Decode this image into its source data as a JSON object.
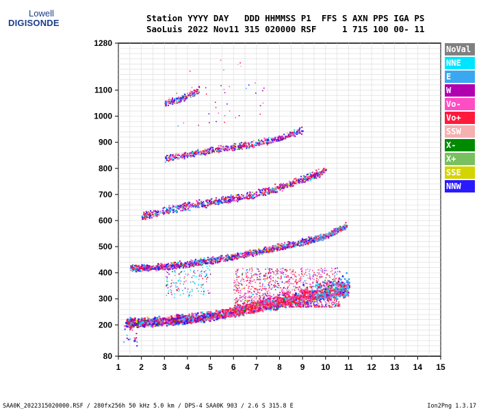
{
  "logo": {
    "line1": "Lowell",
    "line2": "DIGISONDE"
  },
  "header": {
    "line1": "Station YYYY DAY   DDD HHMMSS P1  FFS S AXN PPS IGA PS",
    "line2": "SaoLuis 2022 Nov11 315 020000 RSF     1 715 100 00- 11"
  },
  "legend": [
    {
      "label": "NoVal",
      "color": "#808080"
    },
    {
      "label": "NNE",
      "color": "#00e5ff"
    },
    {
      "label": "E",
      "color": "#3aa8f0"
    },
    {
      "label": "W",
      "color": "#b000b0"
    },
    {
      "label": "Vo-",
      "color": "#ff4dc4"
    },
    {
      "label": "Vo+",
      "color": "#ff1a3c"
    },
    {
      "label": "SSW",
      "color": "#f5b0b0"
    },
    {
      "label": "X-",
      "color": "#008a00"
    },
    {
      "label": "X+",
      "color": "#78c060"
    },
    {
      "label": "SSE",
      "color": "#d4d400"
    },
    {
      "label": "NNW",
      "color": "#2a1aff"
    }
  ],
  "footer": {
    "left": "SAA0K_2022315020000.RSF / 280fx256h 50 kHz 5.0 km / DPS-4 SAA0K 903 / 2.6 S 315.8 E",
    "right": "Ion2Png 1.3.17"
  },
  "chart_data": {
    "type": "scatter",
    "x_ticks": [
      1,
      2,
      3,
      4,
      5,
      6,
      7,
      8,
      9,
      10,
      11,
      12,
      13,
      14,
      15
    ],
    "xlim": [
      1,
      15
    ],
    "y_ticks": [
      80,
      200,
      300,
      400,
      500,
      600,
      700,
      800,
      900,
      1000,
      1100,
      1280
    ],
    "ylim": [
      80,
      1280
    ],
    "traces": [
      {
        "x": [
          1.3,
          2,
          3,
          4,
          5,
          6,
          7,
          8,
          9,
          10,
          11
        ],
        "y": [
          205,
          207,
          212,
          220,
          232,
          245,
          260,
          275,
          290,
          305,
          320
        ]
      },
      {
        "x": [
          1.5,
          2,
          3,
          4,
          5,
          6,
          7,
          8,
          9,
          10,
          10.9
        ],
        "y": [
          415,
          417,
          422,
          432,
          445,
          460,
          478,
          497,
          515,
          540,
          580
        ]
      },
      {
        "x": [
          2,
          3,
          4,
          5,
          6,
          7,
          8,
          9,
          10
        ],
        "y": [
          615,
          635,
          652,
          667,
          683,
          700,
          725,
          755,
          790
        ]
      },
      {
        "x": [
          3,
          4,
          5,
          6,
          7,
          8,
          9
        ],
        "y": [
          835,
          852,
          868,
          880,
          893,
          915,
          945
        ]
      },
      {
        "x": [
          3,
          3.5,
          4,
          4.5
        ],
        "y": [
          1050,
          1060,
          1075,
          1100
        ]
      }
    ]
  }
}
